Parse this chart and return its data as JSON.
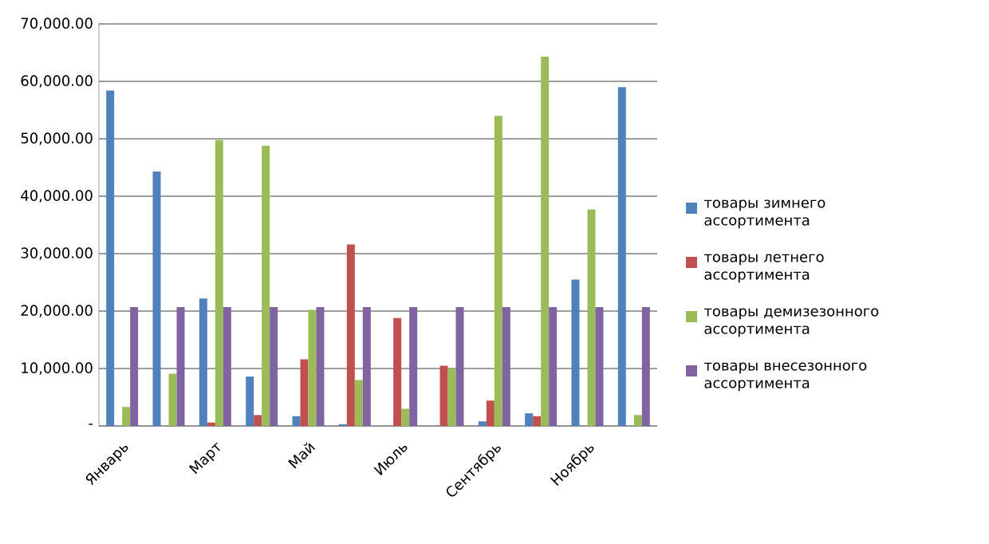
{
  "chart_data": {
    "type": "bar",
    "categories": [
      "Январь",
      null,
      "Март",
      null,
      "Май",
      null,
      "Июль",
      null,
      "Сентябрь",
      null,
      "Ноябрь",
      null
    ],
    "series": [
      {
        "name": "товары зимнего ассортимента",
        "color": "#4f81bd",
        "values": [
          58400,
          44300,
          22200,
          8600,
          1700,
          300,
          0,
          0,
          800,
          2200,
          25500,
          59000
        ]
      },
      {
        "name": "товары летнего ассортимента",
        "color": "#c0504d",
        "values": [
          0,
          0,
          600,
          1900,
          11600,
          31600,
          18800,
          10500,
          4400,
          1700,
          0,
          0
        ]
      },
      {
        "name": "товары демизезонного ассортимента",
        "color": "#9bbb59",
        "values": [
          3300,
          9100,
          49800,
          48800,
          20200,
          8000,
          3000,
          10000,
          54000,
          64300,
          37700,
          1900
        ]
      },
      {
        "name": "товары внесезонного ассортимента",
        "color": "#8064a2",
        "values": [
          20700,
          20700,
          20700,
          20700,
          20700,
          20700,
          20700,
          20700,
          20700,
          20700,
          20700,
          20700
        ]
      }
    ],
    "ylim": [
      0,
      70000
    ],
    "yticks": [
      {
        "value": 0,
        "label": "-"
      },
      {
        "value": 10000,
        "label": "10,000.00"
      },
      {
        "value": 20000,
        "label": "20,000.00"
      },
      {
        "value": 30000,
        "label": "30,000.00"
      },
      {
        "value": 40000,
        "label": "40,000.00"
      },
      {
        "value": 50000,
        "label": "50,000.00"
      },
      {
        "value": 60000,
        "label": "60,000.00"
      },
      {
        "value": 70000,
        "label": "70,000.00"
      }
    ],
    "grid": "y",
    "legend": "right"
  }
}
